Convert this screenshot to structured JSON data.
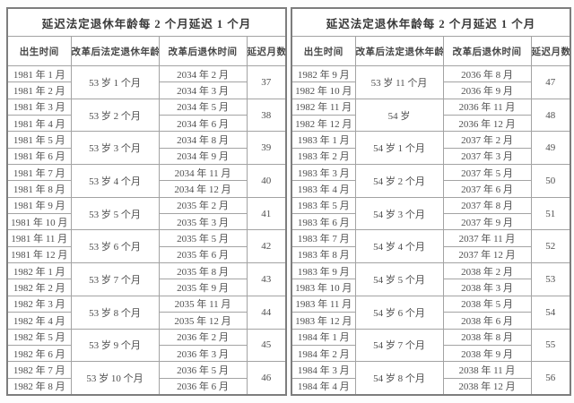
{
  "chart_data": [
    {
      "type": "table",
      "title": "延迟法定退休年龄每 2 个月延迟 1 个月",
      "columns": [
        "出生时间",
        "改革后法定退休年龄",
        "改革后退休时间",
        "延迟月数"
      ],
      "row_groups": [
        {
          "birth": [
            "1981 年 1 月",
            "1981 年 2 月"
          ],
          "age": "53 岁 1 个月",
          "retire": [
            "2034 年 2 月",
            "2034 年 3 月"
          ],
          "delay_months": "37"
        },
        {
          "birth": [
            "1981 年 3 月",
            "1981 年 4 月"
          ],
          "age": "53 岁 2 个月",
          "retire": [
            "2034 年 5 月",
            "2034 年 6 月"
          ],
          "delay_months": "38"
        },
        {
          "birth": [
            "1981 年 5 月",
            "1981 年 6 月"
          ],
          "age": "53 岁 3 个月",
          "retire": [
            "2034 年 8 月",
            "2034 年 9 月"
          ],
          "delay_months": "39"
        },
        {
          "birth": [
            "1981 年 7 月",
            "1981 年 8 月"
          ],
          "age": "53 岁 4 个月",
          "retire": [
            "2034 年 11 月",
            "2034 年 12 月"
          ],
          "delay_months": "40"
        },
        {
          "birth": [
            "1981 年 9 月",
            "1981 年 10 月"
          ],
          "age": "53 岁 5 个月",
          "retire": [
            "2035 年 2 月",
            "2035 年 3 月"
          ],
          "delay_months": "41"
        },
        {
          "birth": [
            "1981 年 11 月",
            "1981 年 12 月"
          ],
          "age": "53 岁 6 个月",
          "retire": [
            "2035 年 5 月",
            "2035 年 6 月"
          ],
          "delay_months": "42"
        },
        {
          "birth": [
            "1982 年 1 月",
            "1982 年 2 月"
          ],
          "age": "53 岁 7 个月",
          "retire": [
            "2035 年 8 月",
            "2035 年 9 月"
          ],
          "delay_months": "43"
        },
        {
          "birth": [
            "1982 年 3 月",
            "1982 年 4 月"
          ],
          "age": "53 岁 8 个月",
          "retire": [
            "2035 年 11 月",
            "2035 年 12 月"
          ],
          "delay_months": "44"
        },
        {
          "birth": [
            "1982 年 5 月",
            "1982 年 6 月"
          ],
          "age": "53 岁 9 个月",
          "retire": [
            "2036 年 2 月",
            "2036 年 3 月"
          ],
          "delay_months": "45"
        },
        {
          "birth": [
            "1982 年 7 月",
            "1982 年 8 月"
          ],
          "age": "53 岁 10 个月",
          "retire": [
            "2036 年 5 月",
            "2036 年 6 月"
          ],
          "delay_months": "46"
        }
      ]
    },
    {
      "type": "table",
      "title": "延迟法定退休年龄每 2 个月延迟 1 个月",
      "columns": [
        "出生时间",
        "改革后法定退休年龄",
        "改革后退休时间",
        "延迟月数"
      ],
      "row_groups": [
        {
          "birth": [
            "1982 年 9 月",
            "1982 年 10 月"
          ],
          "age": "53 岁 11 个月",
          "retire": [
            "2036 年 8 月",
            "2036 年 9 月"
          ],
          "delay_months": "47"
        },
        {
          "birth": [
            "1982 年 11 月",
            "1982 年 12 月"
          ],
          "age": "54 岁",
          "retire": [
            "2036 年 11 月",
            "2036 年 12 月"
          ],
          "delay_months": "48"
        },
        {
          "birth": [
            "1983 年 1 月",
            "1983 年 2 月"
          ],
          "age": "54 岁 1 个月",
          "retire": [
            "2037 年 2 月",
            "2037 年 3 月"
          ],
          "delay_months": "49"
        },
        {
          "birth": [
            "1983 年 3 月",
            "1983 年 4 月"
          ],
          "age": "54 岁 2 个月",
          "retire": [
            "2037 年 5 月",
            "2037 年 6 月"
          ],
          "delay_months": "50"
        },
        {
          "birth": [
            "1983 年 5 月",
            "1983 年 6 月"
          ],
          "age": "54 岁 3 个月",
          "retire": [
            "2037 年 8 月",
            "2037 年 9 月"
          ],
          "delay_months": "51"
        },
        {
          "birth": [
            "1983 年 7 月",
            "1983 年 8 月"
          ],
          "age": "54 岁 4 个月",
          "retire": [
            "2037 年 11 月",
            "2037 年 12 月"
          ],
          "delay_months": "52"
        },
        {
          "birth": [
            "1983 年 9 月",
            "1983 年 10 月"
          ],
          "age": "54 岁 5 个月",
          "retire": [
            "2038 年 2 月",
            "2038 年 3 月"
          ],
          "delay_months": "53"
        },
        {
          "birth": [
            "1983 年 11 月",
            "1983 年 12 月"
          ],
          "age": "54 岁 6 个月",
          "retire": [
            "2038 年 5 月",
            "2038 年 6 月"
          ],
          "delay_months": "54"
        },
        {
          "birth": [
            "1984 年 1 月",
            "1984 年 2 月"
          ],
          "age": "54 岁 7 个月",
          "retire": [
            "2038 年 8 月",
            "2038 年 9 月"
          ],
          "delay_months": "55"
        },
        {
          "birth": [
            "1984 年 3 月",
            "1984 年 4 月"
          ],
          "age": "54 岁 8 个月",
          "retire": [
            "2038 年 11 月",
            "2038 年 12 月"
          ],
          "delay_months": "56"
        }
      ]
    }
  ]
}
